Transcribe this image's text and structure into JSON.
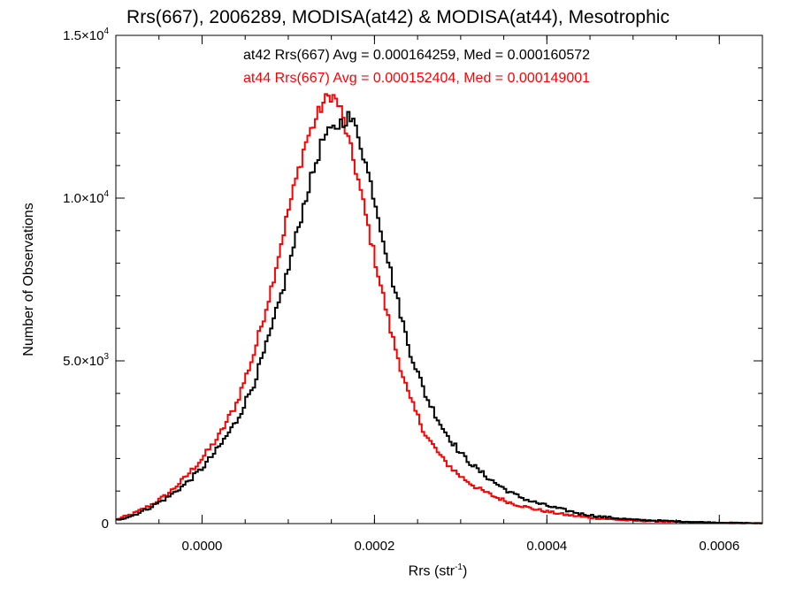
{
  "chart_data": {
    "type": "line",
    "title": "Rrs(667), 2006289, MODISA(at42) & MODISA(at44), Mesotrophic",
    "xlabel": {
      "base": "Rrs (str",
      "sup": "-1",
      "close": ")"
    },
    "ylabel": "Number of Observations",
    "xlim": [
      -0.0001,
      0.00065
    ],
    "ylim": [
      0,
      15000
    ],
    "x_ticks": [
      {
        "value": 0.0,
        "label": "0.0000"
      },
      {
        "value": 0.0002,
        "label": "0.0002"
      },
      {
        "value": 0.0004,
        "label": "0.0004"
      },
      {
        "value": 0.0006,
        "label": "0.0006"
      }
    ],
    "y_ticks": [
      {
        "value": 0,
        "mant": "0",
        "exp": ""
      },
      {
        "value": 5000,
        "mant": "5.0×10",
        "exp": "3"
      },
      {
        "value": 10000,
        "mant": "1.0×10",
        "exp": "4"
      },
      {
        "value": 15000,
        "mant": "1.5×10",
        "exp": "4"
      }
    ],
    "annotations": [
      {
        "text": "at42 Rrs(667) Avg = 0.000164259, Med = 0.000160572",
        "color": "#000000"
      },
      {
        "text": "at44 Rrs(667) Avg = 0.000152404, Med = 0.000149001",
        "color": "#ff0000"
      }
    ],
    "series": [
      {
        "color": "#000000",
        "x": [
          -0.0001,
          -8e-05,
          -6e-05,
          -4e-05,
          -2e-05,
          0.0,
          2e-05,
          4e-05,
          6e-05,
          8e-05,
          0.0001,
          0.00012,
          0.00014,
          0.00016,
          0.00017,
          0.00018,
          0.0002,
          0.00022,
          0.00024,
          0.00026,
          0.00028,
          0.0003,
          0.00032,
          0.00034,
          0.00036,
          0.00038,
          0.0004,
          0.00042,
          0.00044,
          0.00046,
          0.00048,
          0.0005,
          0.00055,
          0.0006,
          0.00065
        ],
        "y": [
          100,
          250,
          500,
          800,
          1200,
          1700,
          2350,
          3150,
          4300,
          5900,
          7800,
          10000,
          11800,
          12300,
          12500,
          12100,
          10000,
          7600,
          5400,
          3900,
          2900,
          2150,
          1650,
          1250,
          920,
          700,
          550,
          420,
          300,
          220,
          170,
          120,
          70,
          30,
          10
        ]
      },
      {
        "color": "#ff0000",
        "x": [
          -0.0001,
          -8e-05,
          -6e-05,
          -4e-05,
          -2e-05,
          0.0,
          2e-05,
          4e-05,
          6e-05,
          8e-05,
          0.0001,
          0.00012,
          0.00014,
          0.00015,
          0.00016,
          0.00018,
          0.0002,
          0.00022,
          0.00024,
          0.00026,
          0.00028,
          0.0003,
          0.00032,
          0.00034,
          0.00036,
          0.00038,
          0.0004,
          0.00042,
          0.00044,
          0.00046,
          0.00048,
          0.0005,
          0.00055,
          0.0006,
          0.00065
        ],
        "y": [
          120,
          300,
          560,
          900,
          1400,
          2000,
          2700,
          3700,
          5200,
          7200,
          9600,
          11700,
          12900,
          13200,
          12800,
          10700,
          8200,
          5800,
          3900,
          2700,
          1950,
          1450,
          1080,
          820,
          620,
          480,
          370,
          280,
          210,
          160,
          120,
          90,
          50,
          20,
          8
        ]
      }
    ]
  }
}
